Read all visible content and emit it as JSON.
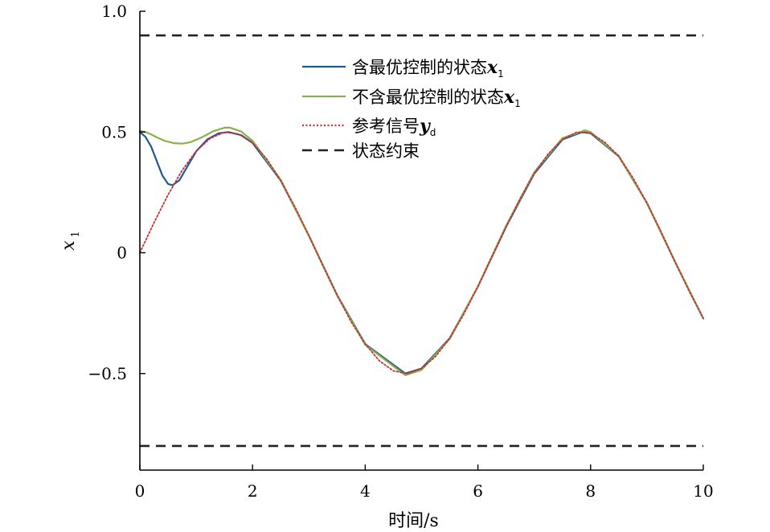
{
  "chart_data": {
    "type": "line",
    "xlabel": "时间/s",
    "ylabel_main": "x",
    "ylabel_sub": "1",
    "xlim": [
      0,
      10
    ],
    "ylim": [
      -0.9,
      1.0
    ],
    "x_ticks": [
      0,
      2,
      4,
      6,
      8,
      10
    ],
    "x_tick_labels": [
      "0",
      "2",
      "4",
      "6",
      "8",
      "10"
    ],
    "y_ticks": [
      -0.5,
      0,
      0.5,
      1.0
    ],
    "y_tick_labels": [
      "−0.5",
      "0",
      "0.5",
      "1.0"
    ],
    "grid": false,
    "legend_position": "top-center",
    "colors": {
      "optimal": "#1f5a96",
      "no_optimal": "#8ab04a",
      "reference": "#c83232",
      "constraint": "#222222"
    },
    "series": [
      {
        "name": "含最优控制的状态",
        "name_var": "x",
        "name_sub": "1",
        "key": "optimal",
        "style": "solid",
        "x": [
          0,
          0.1,
          0.2,
          0.3,
          0.4,
          0.5,
          0.58,
          0.7,
          0.85,
          1.0,
          1.2,
          1.4,
          1.57,
          1.8,
          2.0,
          2.5,
          3.0,
          3.5,
          4.0,
          4.71,
          5.0,
          5.5,
          6.0,
          6.5,
          7.0,
          7.5,
          7.85,
          8.0,
          8.5,
          9.0,
          9.5,
          10.0
        ],
        "y": [
          0.5,
          0.48,
          0.44,
          0.38,
          0.32,
          0.285,
          0.28,
          0.3,
          0.36,
          0.42,
          0.47,
          0.495,
          0.5,
          0.487,
          0.455,
          0.299,
          0.071,
          -0.175,
          -0.378,
          -0.5,
          -0.479,
          -0.354,
          -0.14,
          0.108,
          0.328,
          0.469,
          0.5,
          0.495,
          0.399,
          0.206,
          -0.038,
          -0.272
        ]
      },
      {
        "name": "不含最优控制的状态",
        "name_var": "x",
        "name_sub": "1",
        "key": "no_optimal",
        "style": "solid",
        "x": [
          0,
          0.1,
          0.2,
          0.3,
          0.45,
          0.6,
          0.75,
          0.9,
          1.1,
          1.3,
          1.5,
          1.6,
          1.8,
          2.0,
          2.5,
          3.0,
          3.5,
          4.0,
          4.71,
          5.0,
          5.5,
          6.0,
          6.5,
          7.0,
          7.5,
          7.9,
          8.0,
          8.5,
          9.0,
          9.5,
          10.0
        ],
        "y": [
          0.505,
          0.5,
          0.49,
          0.478,
          0.463,
          0.454,
          0.452,
          0.458,
          0.478,
          0.503,
          0.518,
          0.518,
          0.502,
          0.464,
          0.302,
          0.07,
          -0.177,
          -0.381,
          -0.507,
          -0.485,
          -0.357,
          -0.139,
          0.112,
          0.334,
          0.475,
          0.507,
          0.5,
          0.401,
          0.206,
          -0.038,
          -0.272
        ]
      },
      {
        "name": "参考信号",
        "name_var": "y",
        "name_sub": "d",
        "key": "reference",
        "style": "dotted",
        "x": [
          0,
          0.25,
          0.5,
          0.75,
          1.0,
          1.25,
          1.5,
          1.75,
          2.0,
          2.25,
          2.5,
          2.75,
          3.0,
          3.25,
          3.5,
          3.75,
          4.0,
          4.25,
          4.5,
          4.75,
          5.0,
          5.25,
          5.5,
          5.75,
          6.0,
          6.25,
          6.5,
          6.75,
          7.0,
          7.25,
          7.5,
          7.75,
          8.0,
          8.25,
          8.5,
          8.75,
          9.0,
          9.25,
          9.5,
          9.75,
          10.0
        ],
        "y": [
          0,
          0.124,
          0.24,
          0.341,
          0.421,
          0.474,
          0.499,
          0.492,
          0.455,
          0.389,
          0.299,
          0.191,
          0.071,
          -0.054,
          -0.175,
          -0.286,
          -0.378,
          -0.447,
          -0.489,
          -0.5,
          -0.479,
          -0.429,
          -0.354,
          -0.254,
          -0.14,
          -0.016,
          0.108,
          0.225,
          0.328,
          0.41,
          0.469,
          0.499,
          0.495,
          0.458,
          0.399,
          0.311,
          0.206,
          0.088,
          -0.038,
          -0.16,
          -0.272
        ]
      },
      {
        "name": "状态约束",
        "key": "constraint",
        "style": "dashed",
        "upper": 0.9,
        "lower": -0.8
      }
    ]
  }
}
